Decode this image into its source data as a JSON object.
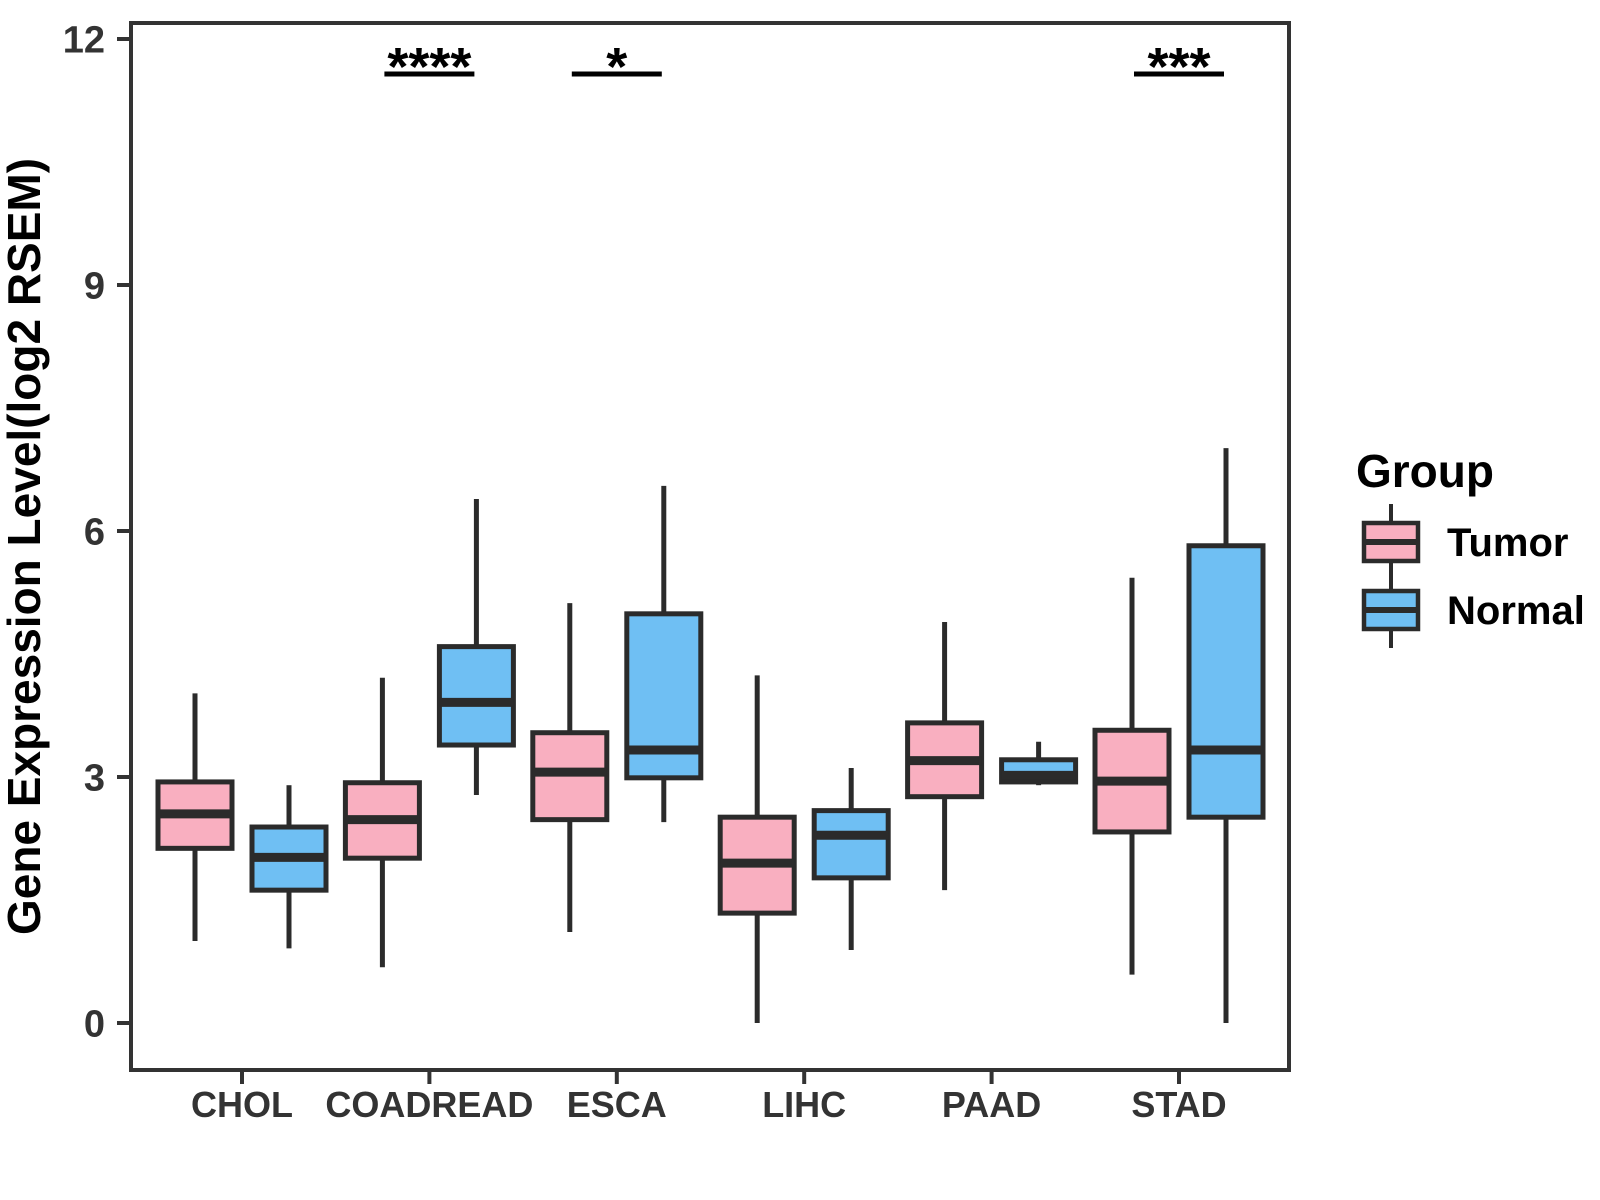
{
  "chart_data": {
    "type": "boxplot",
    "title": "",
    "xlabel": "",
    "ylabel": "Gene Expression Level(log2 RSEM)",
    "ylim": [
      0,
      12
    ],
    "yticks": [
      0,
      3,
      6,
      9,
      12
    ],
    "grid": false,
    "legend_position": "right",
    "legend": {
      "title": "Group"
    },
    "categories": [
      "CHOL",
      "COADREAD",
      "ESCA",
      "LIHC",
      "PAAD",
      "STAD"
    ],
    "series": [
      {
        "name": "Tumor",
        "color": "#F9AFC0",
        "boxes": [
          {
            "min": 1.0,
            "q1": 2.13,
            "median": 2.55,
            "q3": 2.94,
            "max": 4.02
          },
          {
            "min": 0.68,
            "q1": 2.01,
            "median": 2.48,
            "q3": 2.93,
            "max": 4.21
          },
          {
            "min": 1.11,
            "q1": 2.48,
            "median": 3.06,
            "q3": 3.54,
            "max": 5.12
          },
          {
            "min": 0.0,
            "q1": 1.34,
            "median": 1.95,
            "q3": 2.51,
            "max": 4.24
          },
          {
            "min": 1.62,
            "q1": 2.76,
            "median": 3.2,
            "q3": 3.66,
            "max": 4.89
          },
          {
            "min": 0.59,
            "q1": 2.33,
            "median": 2.95,
            "q3": 3.57,
            "max": 5.43
          }
        ]
      },
      {
        "name": "Normal",
        "color": "#6FBFF3",
        "boxes": [
          {
            "min": 0.91,
            "q1": 1.62,
            "median": 2.02,
            "q3": 2.39,
            "max": 2.9
          },
          {
            "min": 2.78,
            "q1": 3.39,
            "median": 3.91,
            "q3": 4.59,
            "max": 6.39
          },
          {
            "min": 2.45,
            "q1": 2.99,
            "median": 3.33,
            "q3": 4.99,
            "max": 6.55
          },
          {
            "min": 0.89,
            "q1": 1.77,
            "median": 2.29,
            "q3": 2.59,
            "max": 3.11
          },
          {
            "min": 2.9,
            "q1": 2.94,
            "median": 3.02,
            "q3": 3.21,
            "max": 3.43
          },
          {
            "min": 0.0,
            "q1": 2.51,
            "median": 3.33,
            "q3": 5.82,
            "max": 7.01
          }
        ]
      }
    ],
    "significance": [
      {
        "category": "COADREAD",
        "label": "****"
      },
      {
        "category": "ESCA",
        "label": "*"
      },
      {
        "category": "STAD",
        "label": "***"
      }
    ],
    "colors": {
      "tumor_fill": "#F9AFC0",
      "normal_fill": "#6FBFF3",
      "stroke": "#2B2B2B",
      "panel_border": "#333333"
    }
  }
}
